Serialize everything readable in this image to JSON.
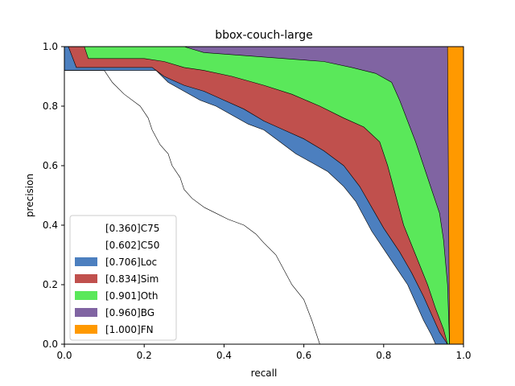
{
  "chart_data": {
    "type": "area",
    "title": "bbox-couch-large",
    "xlabel": "recall",
    "ylabel": "precision",
    "xlim": [
      0,
      1
    ],
    "ylim": [
      0,
      1
    ],
    "x_ticks": [
      "0.0",
      "0.2",
      "0.4",
      "0.6",
      "0.8",
      "1.0"
    ],
    "y_ticks": [
      "0.0",
      "0.2",
      "0.4",
      "0.6",
      "0.8",
      "1.0"
    ],
    "grid": false,
    "legend_position": "lower-left",
    "series": [
      {
        "name": "[0.360]C75",
        "color": "#ffffff",
        "points": [
          [
            0.0,
            0.92
          ],
          [
            0.1,
            0.92
          ],
          [
            0.12,
            0.88
          ],
          [
            0.15,
            0.84
          ],
          [
            0.19,
            0.8
          ],
          [
            0.21,
            0.76
          ],
          [
            0.22,
            0.72
          ],
          [
            0.24,
            0.67
          ],
          [
            0.26,
            0.64
          ],
          [
            0.27,
            0.6
          ],
          [
            0.29,
            0.56
          ],
          [
            0.3,
            0.52
          ],
          [
            0.32,
            0.49
          ],
          [
            0.35,
            0.46
          ],
          [
            0.38,
            0.44
          ],
          [
            0.41,
            0.42
          ],
          [
            0.45,
            0.4
          ],
          [
            0.48,
            0.37
          ],
          [
            0.5,
            0.34
          ],
          [
            0.53,
            0.3
          ],
          [
            0.55,
            0.25
          ],
          [
            0.57,
            0.2
          ],
          [
            0.6,
            0.15
          ],
          [
            0.62,
            0.08
          ],
          [
            0.64,
            0.0
          ]
        ]
      },
      {
        "name": "[0.602]C50",
        "color": "#ffffff",
        "points": [
          [
            0.0,
            0.92
          ],
          [
            0.23,
            0.92
          ],
          [
            0.26,
            0.88
          ],
          [
            0.3,
            0.85
          ],
          [
            0.34,
            0.82
          ],
          [
            0.38,
            0.8
          ],
          [
            0.42,
            0.77
          ],
          [
            0.46,
            0.74
          ],
          [
            0.5,
            0.72
          ],
          [
            0.54,
            0.68
          ],
          [
            0.58,
            0.64
          ],
          [
            0.62,
            0.61
          ],
          [
            0.66,
            0.58
          ],
          [
            0.7,
            0.53
          ],
          [
            0.73,
            0.48
          ],
          [
            0.75,
            0.43
          ],
          [
            0.77,
            0.38
          ],
          [
            0.8,
            0.32
          ],
          [
            0.83,
            0.26
          ],
          [
            0.86,
            0.2
          ],
          [
            0.88,
            0.14
          ],
          [
            0.9,
            0.08
          ],
          [
            0.92,
            0.03
          ],
          [
            0.93,
            0.0
          ]
        ]
      },
      {
        "name": "[0.706]Loc",
        "color": "#4c7fbf",
        "points": [
          [
            0.0,
            1.0
          ],
          [
            0.01,
            1.0
          ],
          [
            0.03,
            0.93
          ],
          [
            0.14,
            0.93
          ],
          [
            0.22,
            0.93
          ],
          [
            0.25,
            0.9
          ],
          [
            0.3,
            0.87
          ],
          [
            0.35,
            0.85
          ],
          [
            0.4,
            0.82
          ],
          [
            0.45,
            0.79
          ],
          [
            0.5,
            0.75
          ],
          [
            0.55,
            0.72
          ],
          [
            0.6,
            0.69
          ],
          [
            0.65,
            0.65
          ],
          [
            0.7,
            0.6
          ],
          [
            0.74,
            0.53
          ],
          [
            0.77,
            0.46
          ],
          [
            0.8,
            0.39
          ],
          [
            0.84,
            0.31
          ],
          [
            0.87,
            0.24
          ],
          [
            0.9,
            0.16
          ],
          [
            0.92,
            0.1
          ],
          [
            0.94,
            0.04
          ],
          [
            0.96,
            0.0
          ]
        ]
      },
      {
        "name": "[0.834]Sim",
        "color": "#c0504d",
        "points": [
          [
            0.0,
            1.0
          ],
          [
            0.05,
            1.0
          ],
          [
            0.06,
            0.96
          ],
          [
            0.2,
            0.96
          ],
          [
            0.25,
            0.95
          ],
          [
            0.3,
            0.93
          ],
          [
            0.35,
            0.92
          ],
          [
            0.42,
            0.9
          ],
          [
            0.5,
            0.87
          ],
          [
            0.57,
            0.84
          ],
          [
            0.64,
            0.8
          ],
          [
            0.7,
            0.76
          ],
          [
            0.75,
            0.73
          ],
          [
            0.79,
            0.68
          ],
          [
            0.81,
            0.6
          ],
          [
            0.83,
            0.5
          ],
          [
            0.85,
            0.4
          ],
          [
            0.88,
            0.3
          ],
          [
            0.91,
            0.2
          ],
          [
            0.93,
            0.12
          ],
          [
            0.95,
            0.05
          ],
          [
            0.96,
            0.0
          ]
        ]
      },
      {
        "name": "[0.901]Oth",
        "color": "#5ae85a",
        "points": [
          [
            0.0,
            1.0
          ],
          [
            0.3,
            1.0
          ],
          [
            0.35,
            0.98
          ],
          [
            0.45,
            0.97
          ],
          [
            0.55,
            0.96
          ],
          [
            0.65,
            0.95
          ],
          [
            0.72,
            0.93
          ],
          [
            0.78,
            0.91
          ],
          [
            0.82,
            0.88
          ],
          [
            0.84,
            0.82
          ],
          [
            0.86,
            0.75
          ],
          [
            0.88,
            0.68
          ],
          [
            0.9,
            0.6
          ],
          [
            0.92,
            0.52
          ],
          [
            0.94,
            0.44
          ],
          [
            0.95,
            0.35
          ],
          [
            0.96,
            0.2
          ],
          [
            0.965,
            0.0
          ]
        ]
      },
      {
        "name": "[0.960]BG",
        "color": "#8064a2",
        "points": [
          [
            0.0,
            1.0
          ],
          [
            0.96,
            1.0
          ],
          [
            0.965,
            0.0
          ]
        ]
      },
      {
        "name": "[1.000]FN",
        "color": "#ff9900",
        "points": [
          [
            0.96,
            1.0
          ],
          [
            1.0,
            1.0
          ],
          [
            1.0,
            0.0
          ],
          [
            0.965,
            0.0
          ]
        ]
      }
    ]
  }
}
